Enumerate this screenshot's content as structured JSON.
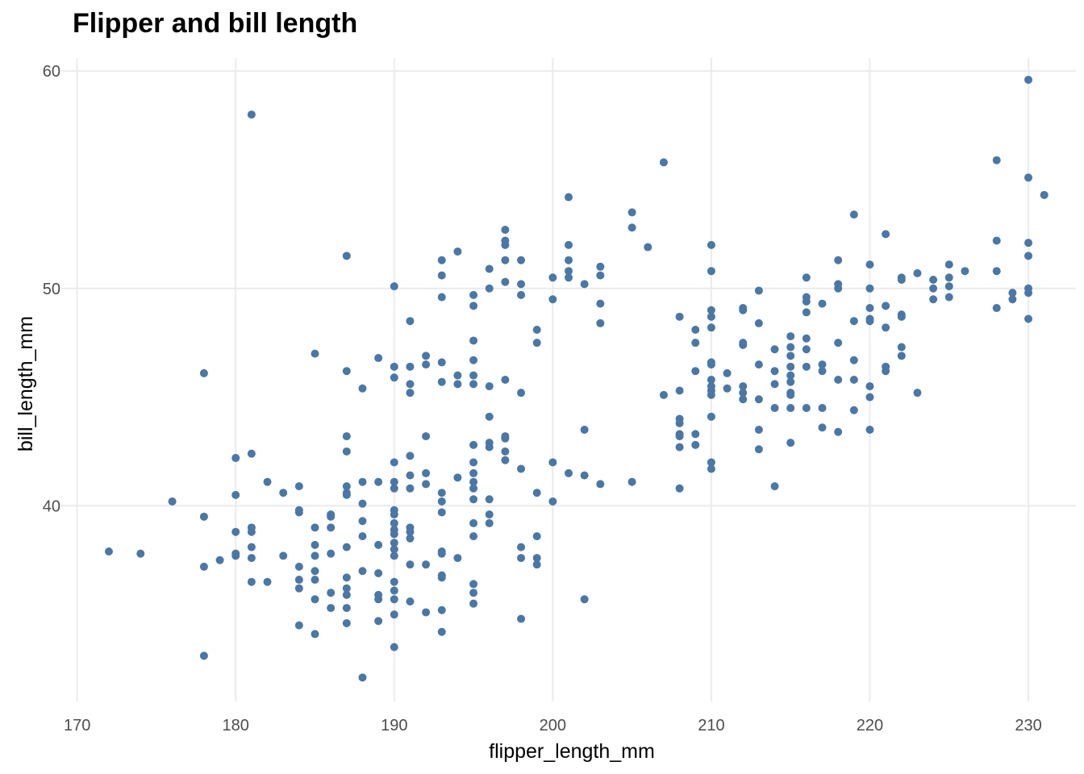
{
  "chart_data": {
    "type": "scatter",
    "title": "Flipper and bill length",
    "xlabel": "flipper_length_mm",
    "ylabel": "bill_length_mm",
    "xlim": [
      169.0,
      233.0
    ],
    "ylim": [
      31.0,
      60.6
    ],
    "xticks": [
      170,
      180,
      190,
      200,
      210,
      220,
      230
    ],
    "yticks": [
      40,
      50,
      60
    ],
    "grid": true,
    "point_color": "#4a77a6",
    "points": [
      [
        172,
        37.9
      ],
      [
        174,
        37.8
      ],
      [
        176,
        40.2
      ],
      [
        178,
        46.1
      ],
      [
        178,
        39.5
      ],
      [
        178,
        37.2
      ],
      [
        178,
        33.1
      ],
      [
        179,
        37.5
      ],
      [
        180,
        42.2
      ],
      [
        180,
        40.5
      ],
      [
        180,
        38.8
      ],
      [
        180,
        37.8
      ],
      [
        180,
        37.7
      ],
      [
        181,
        58.0
      ],
      [
        181,
        42.4
      ],
      [
        181,
        39.0
      ],
      [
        181,
        38.8
      ],
      [
        181,
        38.1
      ],
      [
        181,
        37.6
      ],
      [
        181,
        36.5
      ],
      [
        182,
        41.1
      ],
      [
        182,
        36.5
      ],
      [
        183,
        40.6
      ],
      [
        183,
        37.7
      ],
      [
        184,
        40.9
      ],
      [
        184,
        39.8
      ],
      [
        184,
        39.7
      ],
      [
        184,
        37.2
      ],
      [
        184,
        36.6
      ],
      [
        184,
        36.2
      ],
      [
        184,
        34.5
      ],
      [
        185,
        47.0
      ],
      [
        185,
        39.0
      ],
      [
        185,
        38.2
      ],
      [
        185,
        37.7
      ],
      [
        185,
        37.0
      ],
      [
        185,
        36.6
      ],
      [
        185,
        35.7
      ],
      [
        185,
        34.1
      ],
      [
        186,
        39.6
      ],
      [
        186,
        39.5
      ],
      [
        186,
        39.0
      ],
      [
        186,
        37.8
      ],
      [
        186,
        36.0
      ],
      [
        186,
        35.3
      ],
      [
        187,
        46.2
      ],
      [
        187,
        43.2
      ],
      [
        187,
        42.5
      ],
      [
        187,
        40.9
      ],
      [
        187,
        40.6
      ],
      [
        187,
        40.5
      ],
      [
        187,
        38.1
      ],
      [
        187,
        36.7
      ],
      [
        187,
        36.2
      ],
      [
        187,
        35.9
      ],
      [
        187,
        35.3
      ],
      [
        187,
        34.6
      ],
      [
        187,
        51.5
      ],
      [
        188,
        45.4
      ],
      [
        188,
        41.1
      ],
      [
        188,
        40.1
      ],
      [
        188,
        39.3
      ],
      [
        188,
        38.6
      ],
      [
        188,
        37.0
      ],
      [
        188,
        32.1
      ],
      [
        189,
        46.8
      ],
      [
        189,
        41.1
      ],
      [
        189,
        38.2
      ],
      [
        189,
        36.9
      ],
      [
        189,
        35.9
      ],
      [
        189,
        35.7
      ],
      [
        189,
        34.7
      ],
      [
        190,
        50.1
      ],
      [
        190,
        46.4
      ],
      [
        190,
        45.9
      ],
      [
        190,
        42.0
      ],
      [
        190,
        41.1
      ],
      [
        190,
        40.8
      ],
      [
        190,
        39.8
      ],
      [
        190,
        39.6
      ],
      [
        190,
        39.2
      ],
      [
        190,
        38.9
      ],
      [
        190,
        38.7
      ],
      [
        190,
        38.3
      ],
      [
        190,
        38.0
      ],
      [
        190,
        37.7
      ],
      [
        190,
        36.5
      ],
      [
        190,
        36.1
      ],
      [
        190,
        35.7
      ],
      [
        190,
        35.0
      ],
      [
        190,
        33.5
      ],
      [
        191,
        48.5
      ],
      [
        191,
        46.4
      ],
      [
        191,
        45.6
      ],
      [
        191,
        45.2
      ],
      [
        191,
        42.3
      ],
      [
        191,
        41.4
      ],
      [
        191,
        40.8
      ],
      [
        191,
        39.0
      ],
      [
        191,
        38.8
      ],
      [
        191,
        38.5
      ],
      [
        191,
        37.3
      ],
      [
        191,
        35.6
      ],
      [
        192,
        46.9
      ],
      [
        192,
        46.5
      ],
      [
        192,
        43.2
      ],
      [
        192,
        41.5
      ],
      [
        192,
        41.0
      ],
      [
        192,
        37.3
      ],
      [
        192,
        35.1
      ],
      [
        193,
        51.3
      ],
      [
        193,
        50.6
      ],
      [
        193,
        49.6
      ],
      [
        193,
        46.6
      ],
      [
        193,
        45.7
      ],
      [
        193,
        40.6
      ],
      [
        193,
        40.2
      ],
      [
        193,
        39.7
      ],
      [
        193,
        37.9
      ],
      [
        193,
        37.8
      ],
      [
        193,
        36.8
      ],
      [
        193,
        36.7
      ],
      [
        193,
        35.2
      ],
      [
        193,
        34.2
      ],
      [
        194,
        51.7
      ],
      [
        194,
        46.0
      ],
      [
        194,
        45.6
      ],
      [
        194,
        41.3
      ],
      [
        194,
        37.6
      ],
      [
        195,
        49.7
      ],
      [
        195,
        49.2
      ],
      [
        195,
        47.6
      ],
      [
        195,
        46.7
      ],
      [
        195,
        46.0
      ],
      [
        195,
        45.6
      ],
      [
        195,
        42.8
      ],
      [
        195,
        42.0
      ],
      [
        195,
        41.5
      ],
      [
        195,
        41.1
      ],
      [
        195,
        40.8
      ],
      [
        195,
        40.3
      ],
      [
        195,
        39.2
      ],
      [
        195,
        38.6
      ],
      [
        195,
        36.4
      ],
      [
        195,
        36.0
      ],
      [
        195,
        35.5
      ],
      [
        196,
        50.9
      ],
      [
        196,
        50.0
      ],
      [
        196,
        45.5
      ],
      [
        196,
        44.1
      ],
      [
        196,
        42.9
      ],
      [
        196,
        42.7
      ],
      [
        196,
        40.3
      ],
      [
        196,
        39.6
      ],
      [
        196,
        39.2
      ],
      [
        197,
        52.7
      ],
      [
        197,
        52.2
      ],
      [
        197,
        52.0
      ],
      [
        197,
        51.3
      ],
      [
        197,
        50.3
      ],
      [
        197,
        45.8
      ],
      [
        197,
        43.2
      ],
      [
        197,
        43.1
      ],
      [
        197,
        42.5
      ],
      [
        197,
        42.1
      ],
      [
        198,
        51.3
      ],
      [
        198,
        50.2
      ],
      [
        198,
        49.7
      ],
      [
        198,
        45.2
      ],
      [
        198,
        41.7
      ],
      [
        198,
        38.1
      ],
      [
        198,
        37.6
      ],
      [
        198,
        34.8
      ],
      [
        199,
        48.1
      ],
      [
        199,
        47.5
      ],
      [
        199,
        40.6
      ],
      [
        199,
        38.6
      ],
      [
        199,
        37.6
      ],
      [
        199,
        37.3
      ],
      [
        200,
        50.5
      ],
      [
        200,
        49.5
      ],
      [
        200,
        42.0
      ],
      [
        200,
        40.2
      ],
      [
        201,
        54.2
      ],
      [
        201,
        52.0
      ],
      [
        201,
        51.3
      ],
      [
        201,
        50.8
      ],
      [
        201,
        50.5
      ],
      [
        201,
        41.5
      ],
      [
        202,
        50.2
      ],
      [
        202,
        43.5
      ],
      [
        202,
        41.4
      ],
      [
        202,
        35.7
      ],
      [
        203,
        51.0
      ],
      [
        203,
        50.6
      ],
      [
        203,
        49.3
      ],
      [
        203,
        48.4
      ],
      [
        203,
        41.0
      ],
      [
        205,
        53.5
      ],
      [
        205,
        52.8
      ],
      [
        205,
        41.1
      ],
      [
        206,
        51.9
      ],
      [
        207,
        55.8
      ],
      [
        207,
        45.1
      ],
      [
        208,
        48.7
      ],
      [
        208,
        45.3
      ],
      [
        208,
        44.0
      ],
      [
        208,
        43.8
      ],
      [
        208,
        43.3
      ],
      [
        208,
        43.2
      ],
      [
        208,
        42.7
      ],
      [
        208,
        40.8
      ],
      [
        209,
        48.1
      ],
      [
        209,
        47.5
      ],
      [
        209,
        46.2
      ],
      [
        209,
        43.3
      ],
      [
        209,
        42.8
      ],
      [
        210,
        52.0
      ],
      [
        210,
        50.8
      ],
      [
        210,
        49.0
      ],
      [
        210,
        48.7
      ],
      [
        210,
        48.2
      ],
      [
        210,
        46.6
      ],
      [
        210,
        46.5
      ],
      [
        210,
        45.8
      ],
      [
        210,
        45.5
      ],
      [
        210,
        45.3
      ],
      [
        210,
        45.1
      ],
      [
        210,
        44.1
      ],
      [
        210,
        42.0
      ],
      [
        210,
        41.7
      ],
      [
        211,
        46.1
      ],
      [
        211,
        45.4
      ],
      [
        212,
        49.1
      ],
      [
        212,
        49.0
      ],
      [
        212,
        47.5
      ],
      [
        212,
        47.4
      ],
      [
        212,
        45.5
      ],
      [
        212,
        45.2
      ],
      [
        212,
        44.9
      ],
      [
        213,
        49.9
      ],
      [
        213,
        48.4
      ],
      [
        213,
        46.5
      ],
      [
        213,
        44.9
      ],
      [
        213,
        43.5
      ],
      [
        213,
        42.6
      ],
      [
        214,
        47.2
      ],
      [
        214,
        46.2
      ],
      [
        214,
        45.6
      ],
      [
        214,
        44.5
      ],
      [
        214,
        40.9
      ],
      [
        215,
        47.8
      ],
      [
        215,
        47.3
      ],
      [
        215,
        46.9
      ],
      [
        215,
        46.4
      ],
      [
        215,
        46.0
      ],
      [
        215,
        45.7
      ],
      [
        215,
        45.2
      ],
      [
        215,
        45.1
      ],
      [
        215,
        44.5
      ],
      [
        215,
        42.9
      ],
      [
        216,
        50.5
      ],
      [
        216,
        49.6
      ],
      [
        216,
        49.4
      ],
      [
        216,
        48.9
      ],
      [
        216,
        47.7
      ],
      [
        216,
        47.2
      ],
      [
        216,
        46.4
      ],
      [
        216,
        44.5
      ],
      [
        217,
        49.3
      ],
      [
        217,
        46.5
      ],
      [
        217,
        46.2
      ],
      [
        217,
        44.5
      ],
      [
        217,
        43.6
      ],
      [
        218,
        51.3
      ],
      [
        218,
        50.2
      ],
      [
        218,
        50.0
      ],
      [
        218,
        47.5
      ],
      [
        218,
        45.8
      ],
      [
        218,
        43.4
      ],
      [
        219,
        53.4
      ],
      [
        219,
        48.5
      ],
      [
        219,
        46.7
      ],
      [
        219,
        45.8
      ],
      [
        219,
        44.4
      ],
      [
        220,
        51.1
      ],
      [
        220,
        50.0
      ],
      [
        220,
        49.1
      ],
      [
        220,
        48.6
      ],
      [
        220,
        48.5
      ],
      [
        220,
        45.5
      ],
      [
        220,
        45.0
      ],
      [
        220,
        43.5
      ],
      [
        221,
        52.5
      ],
      [
        221,
        49.2
      ],
      [
        221,
        48.2
      ],
      [
        221,
        46.4
      ],
      [
        221,
        46.2
      ],
      [
        222,
        50.4
      ],
      [
        222,
        50.5
      ],
      [
        222,
        48.8
      ],
      [
        222,
        48.7
      ],
      [
        222,
        47.3
      ],
      [
        222,
        46.9
      ],
      [
        223,
        50.7
      ],
      [
        223,
        45.2
      ],
      [
        224,
        50.4
      ],
      [
        224,
        50.0
      ],
      [
        224,
        49.5
      ],
      [
        225,
        51.1
      ],
      [
        225,
        50.5
      ],
      [
        225,
        50.1
      ],
      [
        225,
        49.6
      ],
      [
        226,
        50.8
      ],
      [
        228,
        55.9
      ],
      [
        228,
        52.2
      ],
      [
        228,
        50.8
      ],
      [
        228,
        49.1
      ],
      [
        229,
        49.8
      ],
      [
        229,
        49.5
      ],
      [
        230,
        59.6
      ],
      [
        230,
        55.1
      ],
      [
        230,
        52.1
      ],
      [
        230,
        51.5
      ],
      [
        230,
        50.0
      ],
      [
        230,
        49.8
      ],
      [
        230,
        48.6
      ],
      [
        231,
        54.3
      ]
    ]
  }
}
